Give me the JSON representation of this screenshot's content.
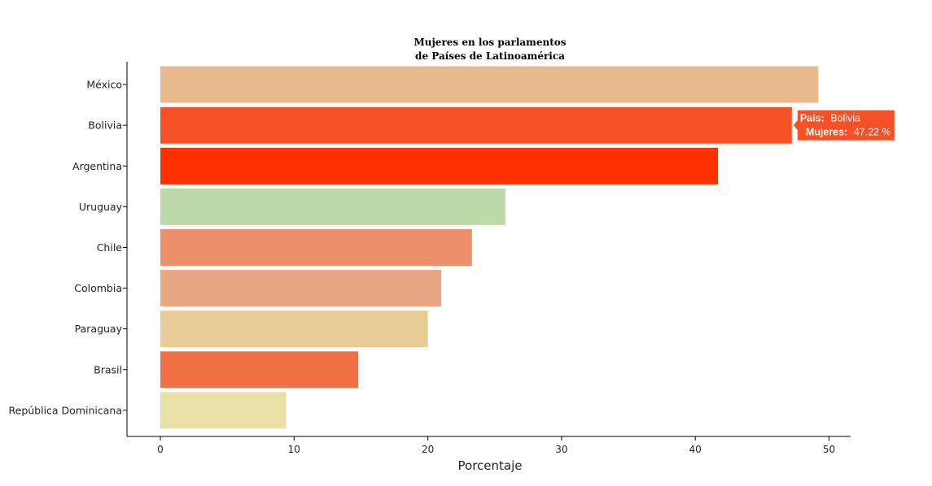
{
  "chart_data": {
    "type": "bar",
    "orientation": "horizontal",
    "title": [
      "Mujeres en los parlamentos",
      "de Países de Latinoamérica"
    ],
    "xlabel": "Porcentaje",
    "ylabel": "",
    "xlim": [
      0,
      52
    ],
    "xticks": [
      0,
      10,
      20,
      30,
      40,
      50
    ],
    "grid": false,
    "categories": [
      "México",
      "Bolivia",
      "Argentina",
      "Uruguay",
      "Chile",
      "Colombia",
      "Paraguay",
      "Brasil",
      "República Dominicana"
    ],
    "values": [
      49.2,
      47.22,
      41.7,
      25.8,
      23.3,
      21.0,
      20.0,
      14.8,
      9.4
    ],
    "colors": [
      "#e8b98c",
      "#f65126",
      "#ff3000",
      "#bdd9a9",
      "#ec8f6a",
      "#e9a682",
      "#e8cc98",
      "#f17145",
      "#e8e0a6"
    ],
    "tooltip": {
      "category": "Bolivia",
      "country_label": "País:",
      "country_value": "Bolivia",
      "value_label": "Mujeres:",
      "value_text": "47.22 %",
      "color": "#f65126"
    }
  }
}
